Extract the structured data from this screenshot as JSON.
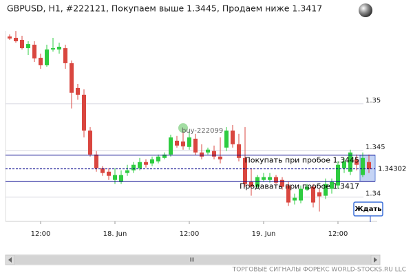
{
  "chart_data": {
    "type": "candlestick",
    "title": "GBPUSD, H1, #222121, Покупаем выше 1.3445, Продаем ниже 1.3417",
    "categories": [
      null,
      null,
      null,
      null,
      null,
      "12:00",
      null,
      null,
      null,
      null,
      null,
      null,
      null,
      null,
      null,
      null,
      null,
      "18. Jun",
      null,
      null,
      null,
      null,
      null,
      null,
      null,
      null,
      null,
      null,
      null,
      "12:00",
      null,
      null,
      null,
      null,
      null,
      null,
      null,
      null,
      null,
      null,
      null,
      "19. Jun",
      null,
      null,
      null,
      null,
      null,
      null,
      null,
      null,
      null,
      null,
      null,
      "12:00",
      null,
      null,
      null,
      null,
      null
    ],
    "open": [
      1.3572,
      1.35706,
      1.35684,
      1.35595,
      1.35632,
      1.35492,
      1.35412,
      1.35581,
      1.35581,
      1.35595,
      1.35434,
      1.35169,
      1.35096,
      1.34713,
      1.34456,
      1.34309,
      1.34272,
      1.34184,
      1.34162,
      1.34258,
      1.34287,
      1.34309,
      1.34375,
      1.34361,
      1.34383,
      1.34419,
      1.34456,
      1.34603,
      1.34596,
      1.34537,
      1.34625,
      1.34478,
      1.34478,
      1.34493,
      1.34434,
      1.3453,
      1.34713,
      1.34566,
      1.34419,
      1.34162,
      1.34111,
      1.34184,
      1.34184,
      1.34214,
      1.34184,
      1.34125,
      1.33964,
      1.33964,
      1.34081,
      1.34111,
      1.34052,
      1.34015,
      1.34089,
      1.34125,
      1.34309,
      1.34272,
      1.34405,
      1.34236,
      1.34375
    ],
    "high": [
      1.35742,
      1.35779,
      1.35728,
      1.35669,
      1.35669,
      1.35537,
      1.35632,
      1.35706,
      1.35654,
      1.35632,
      1.35463,
      1.35213,
      1.35154,
      1.3475,
      1.34493,
      1.34331,
      1.34309,
      1.34309,
      1.34287,
      1.34346,
      1.34375,
      1.34419,
      1.34405,
      1.34434,
      1.34456,
      1.34478,
      1.34669,
      1.34655,
      1.34713,
      1.34713,
      1.34677,
      1.34566,
      1.3453,
      1.34552,
      1.3464,
      1.3475,
      1.34772,
      1.34677,
      1.3475,
      1.34309,
      1.34236,
      1.34258,
      1.34258,
      1.34236,
      1.34214,
      1.34162,
      1.34037,
      1.34125,
      1.3414,
      1.3414,
      1.34089,
      1.34199,
      1.34199,
      1.34383,
      1.34419,
      1.34508,
      1.34456,
      1.34478,
      1.34456
    ],
    "low": [
      1.35684,
      1.35654,
      1.35581,
      1.35522,
      1.35448,
      1.35375,
      1.35397,
      1.35559,
      1.35537,
      1.35375,
      1.34949,
      1.35044,
      1.3464,
      1.34434,
      1.34272,
      1.34228,
      1.34184,
      1.3414,
      1.3414,
      1.34228,
      1.34258,
      1.34287,
      1.34316,
      1.34331,
      1.34361,
      1.34405,
      1.34434,
      1.3453,
      1.34508,
      1.34508,
      1.34449,
      1.34405,
      1.34456,
      1.34405,
      1.34361,
      1.34493,
      1.3453,
      1.34383,
      1.34111,
      1.34015,
      1.34089,
      1.34162,
      1.34155,
      1.3414,
      1.34081,
      1.33905,
      1.3392,
      1.33934,
      1.34067,
      1.3389,
      1.33846,
      1.33979,
      1.34037,
      1.34089,
      1.34258,
      1.34236,
      1.34287,
      1.34214,
      1.34258
    ],
    "close": [
      1.35698,
      1.35669,
      1.35595,
      1.35639,
      1.35485,
      1.35412,
      1.35581,
      1.35595,
      1.3561,
      1.35434,
      1.35118,
      1.35096,
      1.34713,
      1.34456,
      1.34309,
      1.34258,
      1.34228,
      1.34236,
      1.34236,
      1.34287,
      1.34346,
      1.34375,
      1.34346,
      1.34405,
      1.34434,
      1.34456,
      1.3464,
      1.34552,
      1.34544,
      1.3464,
      1.34478,
      1.34434,
      1.34508,
      1.34434,
      1.34405,
      1.34713,
      1.34566,
      1.34419,
      1.3414,
      1.34111,
      1.34214,
      1.34214,
      1.34214,
      1.34155,
      1.34111,
      1.33942,
      1.33993,
      1.34089,
      1.34111,
      1.33942,
      1.34008,
      1.3414,
      1.34162,
      1.34346,
      1.34383,
      1.34478,
      1.34346,
      1.34419,
      1.34302
    ],
    "up_color": "#2ecc40",
    "down_color": "#d9463f",
    "ylim": [
      1.3374,
      1.3589
    ],
    "yticks": [
      1.35,
      1.345,
      1.34
    ],
    "grid": true,
    "levels": [
      {
        "label": "Покупать при пробое 1.3445",
        "value": 1.3445,
        "color": "#00008b"
      },
      {
        "label": "Продавать при пробое 1.3417",
        "value": 1.3417,
        "color": "#00008b"
      }
    ],
    "current_price": 1.34302,
    "trade_marker": {
      "label": "buy-222099",
      "value": 1.3474
    },
    "button": "Ждать",
    "scrollbar_label": "III",
    "footer": "ТОРГОВЫЕ СИГНАЛЫ ФОРЕКС WORLD-STOCKS.RU LLC"
  }
}
